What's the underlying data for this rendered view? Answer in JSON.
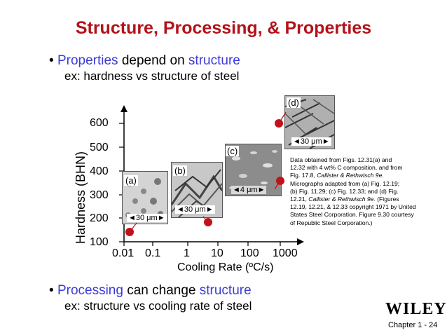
{
  "title": "Structure, Processing, & Properties",
  "bullet1": {
    "marker": "•",
    "word1": "Properties",
    "middle": " depend on ",
    "word2": "structure"
  },
  "sub1": "ex:  hardness vs structure of steel",
  "bullet2": {
    "marker": "•",
    "word1": "Processing",
    "middle": " can change ",
    "word2": "structure"
  },
  "sub2": "ex:  structure vs cooling rate of steel",
  "chart_data": {
    "type": "scatter",
    "xlabel": "Cooling Rate (ºC/s)",
    "ylabel": "Hardness (BHN)",
    "xscale": "log",
    "x_ticks": [
      "0.01",
      "0.1",
      "1",
      "10",
      "100",
      "1000"
    ],
    "y_ticks": [
      "100",
      "200",
      "300",
      "400",
      "500",
      "600"
    ],
    "ylim": [
      100,
      600
    ],
    "points": [
      {
        "x": 0.01,
        "y": 150,
        "label": "(a)"
      },
      {
        "x": 30,
        "y": 180,
        "label": "(b)"
      },
      {
        "x": 1000,
        "y": 430,
        "label": "(c)"
      },
      {
        "x": 1000,
        "y": 620,
        "label": "(d)"
      }
    ],
    "marker_color": "#c1121c"
  },
  "micrographs": [
    {
      "label": "(a)",
      "scale": "30 μm"
    },
    {
      "label": "(b)",
      "scale": "30 μm"
    },
    {
      "label": "(c)",
      "scale": "4 μm"
    },
    {
      "label": "(d)",
      "scale": "30 μm"
    }
  ],
  "source_note": {
    "line1": "Data obtained from Figs. 12.31(a) and",
    "line2": "12.32 with 4 wt% C composition, and from",
    "line3a": "Fig. 17.8, ",
    "line3b": "Callister & Rethwisch 9e.",
    "line4": "Micrographs adapted from (a) Fig. 12.19;",
    "line5": "(b) Fig. 11.29; (c) Fig. 12.33; and (d) Fig.",
    "line6a": "12.21, ",
    "line6b": "Callister & Rethwisch 9e.",
    "line6c": " (Figures",
    "line7": "12.19, 12.21, & 12.33 copyright 1971 by United",
    "line8": "States Steel Corporation. Figure 9.30 courtesy",
    "line9": "of Republic Steel Corporation.)"
  },
  "logo": "WILEY",
  "footer": "Chapter 1 -  24"
}
